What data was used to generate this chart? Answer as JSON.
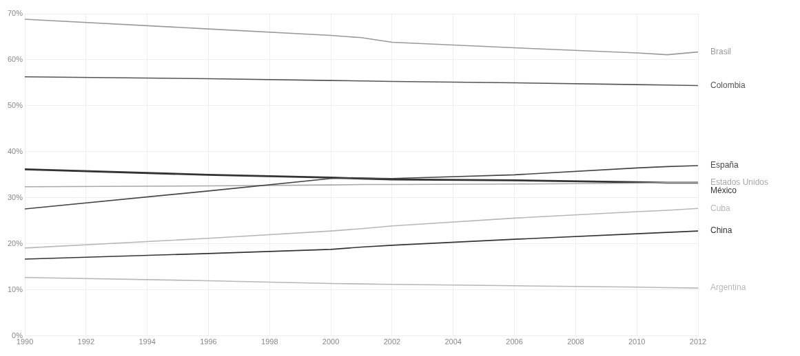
{
  "chart_data": {
    "type": "line",
    "x": [
      1990,
      1996,
      2000,
      2001,
      2002,
      2006,
      2010,
      2011,
      2012
    ],
    "series": [
      {
        "name": "Brasil",
        "color": "#9a9a9a",
        "values": [
          68.8,
          66.7,
          65.3,
          64.8,
          63.8,
          62.6,
          61.5,
          61.1,
          61.7
        ]
      },
      {
        "name": "Colombia",
        "color": "#555555",
        "values": [
          56.3,
          55.9,
          55.5,
          55.4,
          55.3,
          55.0,
          54.6,
          54.5,
          54.4
        ]
      },
      {
        "name": "España",
        "color": "#444444",
        "values": [
          27.6,
          31.5,
          34.2,
          34.3,
          34.2,
          35.0,
          36.5,
          36.8,
          37.0
        ]
      },
      {
        "name": "Estados Unidos",
        "color": "#a8a8a8",
        "values": [
          32.4,
          32.6,
          32.8,
          32.9,
          32.9,
          33.0,
          33.2,
          33.3,
          33.3
        ]
      },
      {
        "name": "México",
        "color": "#333333",
        "values": [
          36.2,
          35.0,
          34.4,
          34.2,
          34.0,
          33.8,
          33.4,
          33.3,
          33.3
        ]
      },
      {
        "name": "Cuba",
        "color": "#b8b8b8",
        "values": [
          19.1,
          21.2,
          22.8,
          23.3,
          23.9,
          25.6,
          27.0,
          27.3,
          27.7
        ]
      },
      {
        "name": "China",
        "color": "#333333",
        "values": [
          16.7,
          17.9,
          18.8,
          19.3,
          19.7,
          21.0,
          22.2,
          22.5,
          22.8
        ]
      },
      {
        "name": "Argentina",
        "color": "#b8b8b8",
        "values": [
          12.7,
          12.0,
          11.4,
          11.3,
          11.2,
          10.9,
          10.6,
          10.5,
          10.4
        ]
      }
    ],
    "xlim": [
      1990,
      2012
    ],
    "xticks": [
      1990,
      1992,
      1994,
      1996,
      1998,
      2000,
      2002,
      2004,
      2006,
      2008,
      2010,
      2012
    ],
    "ylim": [
      0,
      70
    ],
    "yticks": [
      {
        "value": 0,
        "label": "0%"
      },
      {
        "value": 10,
        "label": "10%"
      },
      {
        "value": 20,
        "label": "20%"
      },
      {
        "value": 30,
        "label": "30%"
      },
      {
        "value": 40,
        "label": "40%"
      },
      {
        "value": 50,
        "label": "50%"
      },
      {
        "value": 60,
        "label": "60%"
      },
      {
        "value": 70,
        "label": "70%"
      }
    ],
    "grid": true,
    "legend": false,
    "marker": "none",
    "line_style": "solid"
  }
}
